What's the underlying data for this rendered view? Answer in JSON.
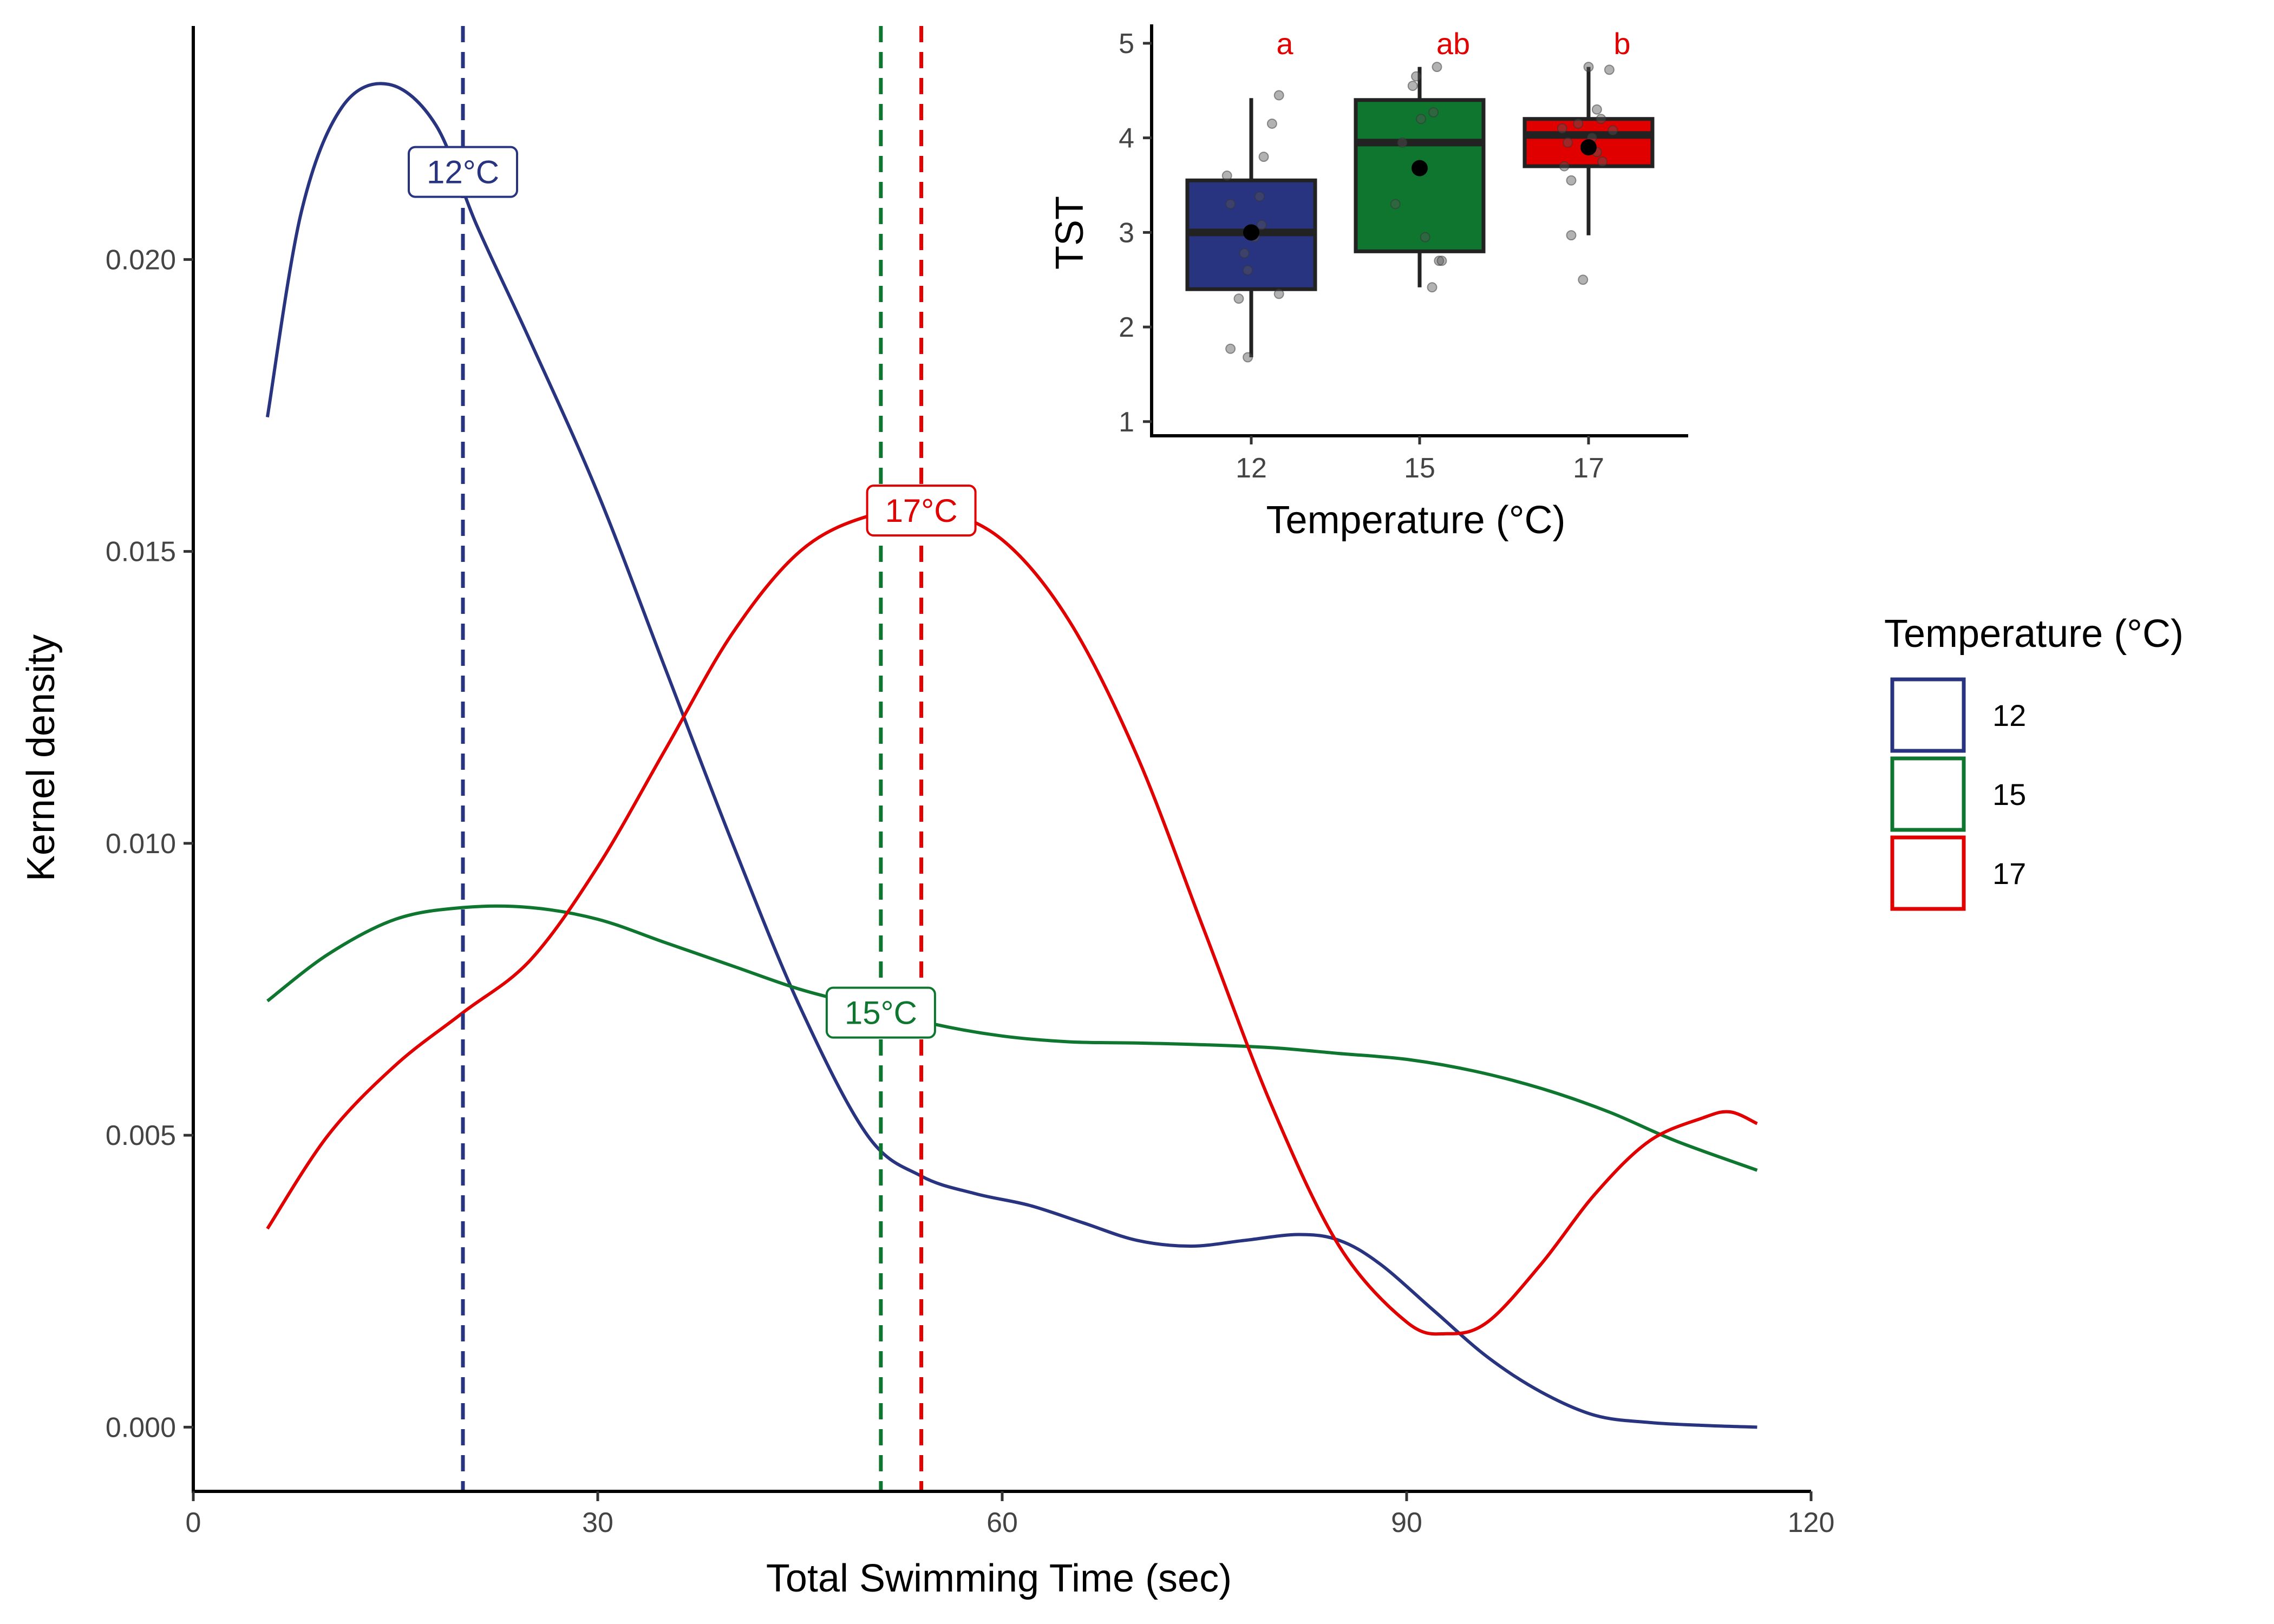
{
  "chart_data": [
    {
      "type": "line",
      "xlabel": "Total Swimming Time (sec)",
      "ylabel": "Kernel density",
      "xlim": [
        0,
        120
      ],
      "ylim": [
        -0.0011,
        0.024
      ],
      "xticks": [
        0,
        30,
        60,
        90,
        120
      ],
      "xtick_labels": [
        "0",
        "30",
        "60",
        "90",
        "120"
      ],
      "yticks": [
        0,
        0.005,
        0.01,
        0.015,
        0.02
      ],
      "ytick_labels": [
        "0.000",
        "0.005",
        "0.010",
        "0.015",
        "0.020"
      ],
      "grid": false,
      "series": [
        {
          "name": "12",
          "color": "#283480",
          "mean_line_x": 20,
          "label": "12°C",
          "label_at": [
            20,
            0.0215
          ],
          "x": [
            5.5,
            8,
            11,
            14.5,
            18,
            21,
            25,
            30,
            35,
            40,
            45,
            50,
            54,
            58,
            62,
            66,
            70,
            74,
            78,
            82,
            85,
            88,
            92,
            96,
            100,
            104,
            108,
            112,
            116
          ],
          "y": [
            0.0173,
            0.0208,
            0.0226,
            0.023,
            0.0223,
            0.0206,
            0.0186,
            0.016,
            0.013,
            0.01,
            0.0072,
            0.005,
            0.0043,
            0.004,
            0.0038,
            0.0035,
            0.0032,
            0.0031,
            0.0032,
            0.0033,
            0.0032,
            0.0028,
            0.002,
            0.0012,
            0.0006,
            0.0002,
            8e-05,
            3e-05,
            0.0
          ]
        },
        {
          "name": "15",
          "color": "#0F7630",
          "mean_line_x": 51,
          "label": "15°C",
          "label_at": [
            51,
            0.0071
          ],
          "x": [
            5.5,
            10,
            15,
            20,
            25,
            30,
            35,
            40,
            45,
            50,
            55,
            60,
            65,
            70,
            75,
            80,
            85,
            90,
            95,
            100,
            105,
            110,
            116
          ],
          "y": [
            0.0073,
            0.0081,
            0.0087,
            0.0089,
            0.0089,
            0.0087,
            0.0083,
            0.0079,
            0.0075,
            0.0072,
            0.0069,
            0.0067,
            0.0066,
            0.00658,
            0.00655,
            0.0065,
            0.0064,
            0.0063,
            0.0061,
            0.0058,
            0.0054,
            0.0049,
            0.0044
          ]
        },
        {
          "name": "17",
          "color": "#E00000",
          "mean_line_x": 54,
          "label": "17°C",
          "label_at": [
            54,
            0.0157
          ],
          "x": [
            5.5,
            10,
            15,
            20,
            25,
            30,
            35,
            40,
            45,
            50,
            55,
            60,
            65,
            70,
            75,
            80,
            85,
            90,
            93,
            96,
            100,
            104,
            108,
            112,
            114,
            116
          ],
          "y": [
            0.0034,
            0.005,
            0.0062,
            0.0071,
            0.008,
            0.0096,
            0.0116,
            0.0136,
            0.015,
            0.0156,
            0.0157,
            0.0152,
            0.0138,
            0.0115,
            0.0085,
            0.0055,
            0.0031,
            0.0018,
            0.0016,
            0.0018,
            0.0028,
            0.004,
            0.0049,
            0.0053,
            0.0054,
            0.0052
          ]
        }
      ],
      "legend": {
        "title": "Temperature (°C)",
        "position": "right",
        "entries": [
          "12",
          "15",
          "17"
        ]
      }
    },
    {
      "type": "box",
      "position": "top-right inset",
      "xlabel": "Temperature (°C)",
      "ylabel": "TST",
      "categories": [
        "12",
        "15",
        "17"
      ],
      "ylim": [
        0.85,
        5.2
      ],
      "yticks": [
        1,
        2,
        3,
        4,
        5
      ],
      "ytick_labels": [
        "1",
        "2",
        "3",
        "4",
        "5"
      ],
      "significance_letters": [
        "a",
        "ab",
        "b"
      ],
      "letter_color": "#E00000",
      "boxes": [
        {
          "category": "12",
          "color": "#283480",
          "whisker_low": 1.68,
          "q1": 2.4,
          "median": 3.0,
          "q3": 3.55,
          "whisker_high": 4.42,
          "mean": 3.0,
          "points": [
            [
              -0.35,
              3.6
            ],
            [
              -0.3,
              3.3
            ],
            [
              -0.3,
              1.77
            ],
            [
              -0.18,
              2.3
            ],
            [
              -0.1,
              2.78
            ],
            [
              -0.05,
              2.6
            ],
            [
              0.12,
              3.38
            ],
            [
              0.15,
              3.08
            ],
            [
              0.18,
              3.8
            ],
            [
              0.3,
              4.15
            ],
            [
              0.4,
              4.45
            ],
            [
              0.4,
              2.35
            ],
            [
              -0.05,
              1.68
            ],
            [
              0.05,
              2.95
            ]
          ]
        },
        {
          "category": "15",
          "color": "#0F7630",
          "whisker_low": 2.42,
          "q1": 2.8,
          "median": 3.95,
          "q3": 4.4,
          "whisker_high": 4.75,
          "mean": 3.68,
          "points": [
            [
              -0.35,
              3.3
            ],
            [
              -0.25,
              3.95
            ],
            [
              -0.05,
              4.65
            ],
            [
              0.02,
              4.2
            ],
            [
              0.08,
              2.95
            ],
            [
              0.18,
              2.42
            ],
            [
              0.2,
              4.27
            ],
            [
              0.25,
              4.75
            ],
            [
              0.28,
              2.7
            ],
            [
              0.32,
              2.7
            ],
            [
              -0.1,
              4.55
            ]
          ]
        },
        {
          "category": "17",
          "color": "#E00000",
          "whisker_low": 2.97,
          "q1": 3.7,
          "median": 4.03,
          "q3": 4.2,
          "whisker_high": 4.75,
          "mean": 3.9,
          "points": [
            [
              -0.38,
              4.1
            ],
            [
              -0.35,
              3.7
            ],
            [
              -0.3,
              3.95
            ],
            [
              -0.25,
              3.55
            ],
            [
              -0.25,
              2.97
            ],
            [
              -0.08,
              2.5
            ],
            [
              0.0,
              4.75
            ],
            [
              0.12,
              3.85
            ],
            [
              0.12,
              4.3
            ],
            [
              0.18,
              4.2
            ],
            [
              0.2,
              3.75
            ],
            [
              0.3,
              4.72
            ],
            [
              0.35,
              4.08
            ],
            [
              -0.15,
              4.15
            ],
            [
              0.05,
              4.0
            ]
          ]
        }
      ]
    }
  ]
}
